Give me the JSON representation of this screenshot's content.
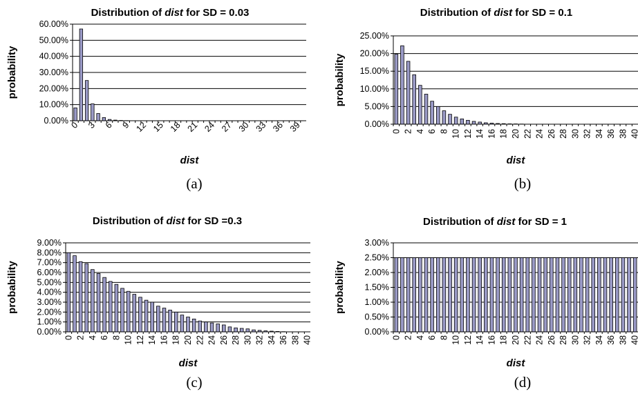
{
  "chart_data": [
    {
      "type": "bar",
      "caption": "(a)",
      "title_prefix": "Distribution of ",
      "title_em": "dist",
      "title_suffix": " for SD = 0.03",
      "xlabel": "dist",
      "ylabel": "probability",
      "ylim": [
        0,
        0.6
      ],
      "yticks": [
        "0.00%",
        "10.00%",
        "20.00%",
        "30.00%",
        "40.00%",
        "50.00%",
        "60.00%"
      ],
      "xtick_step": 3,
      "xtick_rotation": -45,
      "grid": true,
      "legend": "none",
      "bar_color": "#9a9ac6",
      "x": [
        0,
        1,
        2,
        3,
        4,
        5,
        6,
        7,
        8,
        9,
        10,
        11,
        12,
        13,
        14,
        15,
        16,
        17,
        18,
        19,
        20,
        21,
        22,
        23,
        24,
        25,
        26,
        27,
        28,
        29,
        30,
        31,
        32,
        33,
        34,
        35,
        36,
        37,
        38,
        39,
        40
      ],
      "values": [
        0.08,
        0.57,
        0.25,
        0.105,
        0.045,
        0.02,
        0.008,
        0.004,
        0.002,
        0.001,
        0.0005,
        0,
        0,
        0,
        0,
        0,
        0,
        0,
        0,
        0,
        0,
        0,
        0,
        0,
        0,
        0,
        0,
        0,
        0,
        0,
        0,
        0,
        0,
        0,
        0,
        0,
        0,
        0,
        0,
        0,
        0
      ]
    },
    {
      "type": "bar",
      "caption": "(b)",
      "title_prefix": "Distribution of ",
      "title_em": "dist",
      "title_suffix": " for SD = 0.1",
      "xlabel": "dist",
      "ylabel": "probability",
      "ylim": [
        0,
        0.25
      ],
      "yticks": [
        "0.00%",
        "5.00%",
        "10.00%",
        "15.00%",
        "20.00%",
        "25.00%"
      ],
      "xtick_step": 2,
      "xtick_rotation": -90,
      "grid": true,
      "legend": "none",
      "bar_color": "#9a9ac6",
      "x": [
        0,
        1,
        2,
        3,
        4,
        5,
        6,
        7,
        8,
        9,
        10,
        11,
        12,
        13,
        14,
        15,
        16,
        17,
        18,
        19,
        20,
        21,
        22,
        23,
        24,
        25,
        26,
        27,
        28,
        29,
        30,
        31,
        32,
        33,
        34,
        35,
        36,
        37,
        38,
        39,
        40
      ],
      "values": [
        0.198,
        0.222,
        0.178,
        0.14,
        0.11,
        0.085,
        0.065,
        0.05,
        0.038,
        0.028,
        0.02,
        0.015,
        0.011,
        0.008,
        0.006,
        0.004,
        0.003,
        0.002,
        0.0015,
        0.001,
        0.0008,
        0.0005,
        0.0003,
        0.0002,
        0.0001,
        0,
        0,
        0,
        0,
        0,
        0,
        0,
        0,
        0,
        0,
        0,
        0,
        0,
        0,
        0,
        0
      ]
    },
    {
      "type": "bar",
      "caption": "(c)",
      "title_prefix": "Distribution of ",
      "title_em": "dist",
      "title_suffix": " for SD =0.3",
      "xlabel": "dist",
      "ylabel": "probability",
      "ylim": [
        0,
        0.09
      ],
      "yticks": [
        "0.00%",
        "1.00%",
        "2.00%",
        "3.00%",
        "4.00%",
        "5.00%",
        "6.00%",
        "7.00%",
        "8.00%",
        "9.00%"
      ],
      "xtick_step": 2,
      "xtick_rotation": -90,
      "grid": true,
      "legend": "none",
      "bar_color": "#9a9ac6",
      "x": [
        0,
        1,
        2,
        3,
        4,
        5,
        6,
        7,
        8,
        9,
        10,
        11,
        12,
        13,
        14,
        15,
        16,
        17,
        18,
        19,
        20,
        21,
        22,
        23,
        24,
        25,
        26,
        27,
        28,
        29,
        30,
        31,
        32,
        33,
        34,
        35,
        36,
        37,
        38,
        39,
        40
      ],
      "values": [
        0.08,
        0.077,
        0.071,
        0.069,
        0.063,
        0.059,
        0.055,
        0.051,
        0.048,
        0.044,
        0.041,
        0.038,
        0.035,
        0.032,
        0.03,
        0.026,
        0.024,
        0.022,
        0.02,
        0.017,
        0.015,
        0.013,
        0.011,
        0.01,
        0.009,
        0.008,
        0.007,
        0.005,
        0.004,
        0.0035,
        0.003,
        0.002,
        0.0015,
        0.001,
        0.0007,
        0.0004,
        0.0002,
        0.0001,
        0,
        0,
        0
      ]
    },
    {
      "type": "bar",
      "caption": "(d)",
      "title_prefix": "Distribution of ",
      "title_em": "dist",
      "title_suffix": " for SD = 1",
      "xlabel": "dist",
      "ylabel": "probability",
      "ylim": [
        0,
        0.03
      ],
      "yticks": [
        "0.00%",
        "0.50%",
        "1.00%",
        "1.50%",
        "2.00%",
        "2.50%",
        "3.00%"
      ],
      "xtick_step": 2,
      "xtick_rotation": -90,
      "grid": true,
      "legend": "none",
      "bar_color": "#9a9ac6",
      "x": [
        0,
        1,
        2,
        3,
        4,
        5,
        6,
        7,
        8,
        9,
        10,
        11,
        12,
        13,
        14,
        15,
        16,
        17,
        18,
        19,
        20,
        21,
        22,
        23,
        24,
        25,
        26,
        27,
        28,
        29,
        30,
        31,
        32,
        33,
        34,
        35,
        36,
        37,
        38,
        39,
        40
      ],
      "values": [
        0.025,
        0.025,
        0.025,
        0.025,
        0.025,
        0.025,
        0.025,
        0.025,
        0.025,
        0.025,
        0.025,
        0.025,
        0.025,
        0.025,
        0.025,
        0.025,
        0.025,
        0.025,
        0.025,
        0.025,
        0.025,
        0.025,
        0.025,
        0.025,
        0.025,
        0.025,
        0.025,
        0.025,
        0.025,
        0.025,
        0.025,
        0.025,
        0.025,
        0.025,
        0.025,
        0.025,
        0.025,
        0.025,
        0.025,
        0.025,
        0.025
      ]
    }
  ]
}
